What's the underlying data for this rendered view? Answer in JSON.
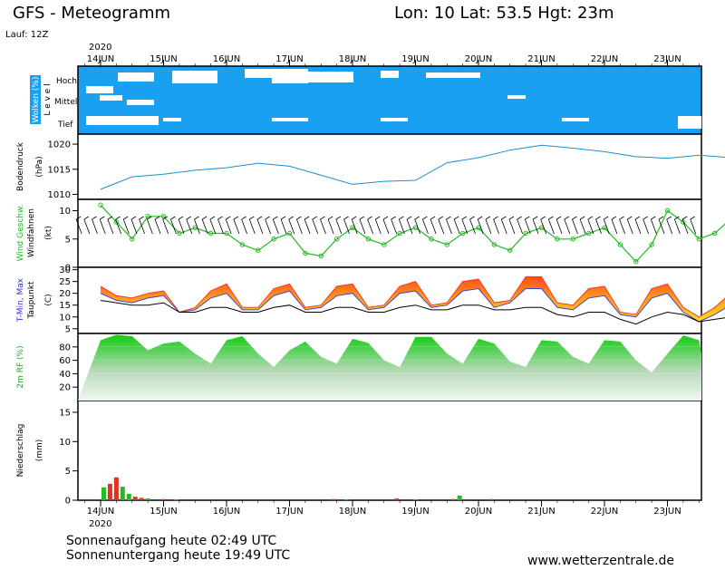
{
  "header": {
    "title": "GFS - Meteogramm",
    "location": "Lon: 10 Lat: 53.5 Hgt: 23m",
    "run": "Lauf: 12Z",
    "year_top": "2020",
    "year_bottom": "2020"
  },
  "footer": {
    "sunrise": "Sonnenaufgang heute 02:49 UTC",
    "sunset": "Sonnenuntergang heute 19:49 UTC",
    "site": "www.wetterzentrale.de"
  },
  "colors": {
    "cloud_blue": "#1aa0f0",
    "pressure": "#1a8fd0",
    "wind_green": "#22bb22",
    "tmax": "#ff3b1f",
    "tmin": "#4444cc",
    "dew": "#000000",
    "rh": "#22cc22",
    "precip_green": "#22bb22",
    "precip_red": "#dd3322"
  },
  "chart_data": [
    {
      "type": "heatmap",
      "panel": "clouds",
      "ylabel": "Wolken (%)",
      "ylabel2": "L e v e l",
      "levels": [
        "Hoch",
        "Mittel",
        "Tief"
      ],
      "x_categories": [
        "14JUN",
        "15JUN",
        "16JUN",
        "17JUN",
        "18JUN",
        "19JUN",
        "20JUN",
        "21JUN",
        "22JUN",
        "23JUN"
      ],
      "ylim": [
        0,
        100
      ]
    },
    {
      "type": "line",
      "panel": "pressure",
      "ylabel": "Bodendruck",
      "ylabel2": "(hPa)",
      "ylim": [
        1009,
        1022
      ],
      "yticks": [
        1010,
        1015,
        1020
      ],
      "x_days": [
        0,
        0.5,
        1,
        1.5,
        2,
        2.5,
        3,
        3.5,
        4,
        4.5,
        5,
        5.5,
        6,
        6.5,
        7,
        7.5,
        8,
        8.5,
        9,
        9.5,
        10
      ],
      "values": [
        1011,
        1013.5,
        1014,
        1014.8,
        1015.3,
        1016.2,
        1015.6,
        1013.8,
        1012,
        1012.6,
        1012.8,
        1016.3,
        1017.3,
        1018.8,
        1019.8,
        1019.2,
        1018.5,
        1017.5,
        1017.2,
        1017.8,
        1017.3
      ]
    },
    {
      "type": "line",
      "panel": "wind",
      "ylabel": "Wind Geschw.",
      "ylabel2": "(kt)",
      "ylabel3": "Windfahnen",
      "ylim": [
        0,
        12
      ],
      "yticks": [
        0,
        5,
        10
      ],
      "x_days": [
        0,
        0.25,
        0.5,
        0.75,
        1,
        1.25,
        1.5,
        1.75,
        2,
        2.25,
        2.5,
        2.75,
        3,
        3.25,
        3.5,
        3.75,
        4,
        4.25,
        4.5,
        4.75,
        5,
        5.25,
        5.5,
        5.75,
        6,
        6.25,
        6.5,
        6.75,
        7,
        7.25,
        7.5,
        7.75,
        8,
        8.25,
        8.5,
        8.75,
        9,
        9.25,
        9.5,
        9.75,
        10
      ],
      "values": [
        11,
        8,
        5,
        9,
        9,
        6,
        7,
        6,
        6,
        4,
        3,
        5,
        6,
        2.5,
        2,
        5,
        7,
        5,
        4,
        6,
        7,
        5,
        4,
        6,
        7,
        4,
        3,
        6,
        7,
        5,
        5,
        6,
        7,
        4,
        1,
        4,
        10,
        8,
        5,
        6,
        8.5
      ]
    },
    {
      "type": "area",
      "panel": "temperature",
      "ylabel": "T-Min, Max",
      "ylabel2": "(C)",
      "ylabel3": "Taupunkt",
      "ylim": [
        3,
        31
      ],
      "yticks": [
        5,
        10,
        15,
        20,
        25,
        30
      ],
      "x_days": [
        0,
        0.25,
        0.5,
        0.75,
        1,
        1.25,
        1.5,
        1.75,
        2,
        2.25,
        2.5,
        2.75,
        3,
        3.25,
        3.5,
        3.75,
        4,
        4.25,
        4.5,
        4.75,
        5,
        5.25,
        5.5,
        5.75,
        6,
        6.25,
        6.5,
        6.75,
        7,
        7.25,
        7.5,
        7.75,
        8,
        8.25,
        8.5,
        8.75,
        9,
        9.25,
        9.5,
        9.75,
        10
      ],
      "series": [
        {
          "name": "Max",
          "values": [
            23,
            19,
            18,
            20,
            21,
            12,
            14,
            21,
            24,
            14,
            14,
            22,
            24,
            14,
            15,
            23,
            24,
            14,
            15,
            23,
            25,
            15,
            16,
            25,
            26,
            16,
            17,
            27,
            27,
            16,
            15,
            22,
            23,
            12,
            11,
            22,
            24,
            14,
            10,
            14,
            20
          ]
        },
        {
          "name": "Min",
          "values": [
            20,
            17,
            16,
            18,
            19,
            12,
            13,
            18,
            20,
            13,
            13,
            19,
            21,
            13,
            14,
            19,
            20,
            13,
            14,
            20,
            21,
            14,
            15,
            21,
            22,
            14,
            16,
            22,
            22,
            14,
            13,
            18,
            19,
            11,
            10,
            18,
            20,
            12,
            8,
            11,
            15
          ]
        },
        {
          "name": "Taupunkt",
          "values": [
            17,
            16,
            15,
            15,
            16,
            12,
            12,
            14,
            14,
            12,
            12,
            14,
            15,
            12,
            12,
            14,
            14,
            12,
            12,
            14,
            15,
            13,
            13,
            15,
            15,
            13,
            13,
            14,
            14,
            11,
            10,
            12,
            12,
            9,
            7,
            10,
            12,
            11,
            8,
            9,
            10
          ]
        }
      ]
    },
    {
      "type": "area",
      "panel": "humidity",
      "ylabel": "2m RF (%)",
      "ylim": [
        0,
        100
      ],
      "yticks": [
        20,
        40,
        60,
        80
      ],
      "x_days": [
        0,
        0.25,
        0.5,
        0.75,
        1,
        1.25,
        1.5,
        1.75,
        2,
        2.25,
        2.5,
        2.75,
        3,
        3.25,
        3.5,
        3.75,
        4,
        4.25,
        4.5,
        4.75,
        5,
        5.25,
        5.5,
        5.75,
        6,
        6.25,
        6.5,
        6.75,
        7,
        7.25,
        7.5,
        7.75,
        8,
        8.25,
        8.5,
        8.75,
        9,
        9.25,
        9.5,
        9.75,
        10
      ],
      "values": [
        90,
        98,
        96,
        75,
        85,
        88,
        70,
        55,
        90,
        96,
        70,
        50,
        75,
        88,
        65,
        55,
        92,
        86,
        60,
        50,
        95,
        95,
        70,
        55,
        92,
        85,
        58,
        50,
        90,
        88,
        65,
        55,
        90,
        88,
        60,
        42,
        70,
        97,
        90,
        70,
        52
      ]
    },
    {
      "type": "bar",
      "panel": "precipitation",
      "ylabel": "Niederschlag",
      "ylabel2": "(mm)",
      "ylim": [
        0,
        17
      ],
      "yticks": [
        0,
        5,
        10,
        15
      ],
      "x_days": [
        0.05,
        0.15,
        0.25,
        0.35,
        0.45,
        0.55,
        0.65,
        0.75,
        1.0,
        1.2,
        3.7,
        3.9,
        4.7,
        5.0,
        5.6,
        5.7,
        6.2
      ],
      "values": [
        2.2,
        2.8,
        3.9,
        2.3,
        1.1,
        0.6,
        0.4,
        0.3,
        0.2,
        0.15,
        0.2,
        0.15,
        0.3,
        0.15,
        0.2,
        0.8,
        0.2
      ],
      "colors": [
        "green",
        "red",
        "red",
        "green",
        "green",
        "red",
        "red",
        "green",
        "red",
        "green",
        "red",
        "green",
        "red",
        "green",
        "red",
        "green",
        "red"
      ]
    }
  ]
}
